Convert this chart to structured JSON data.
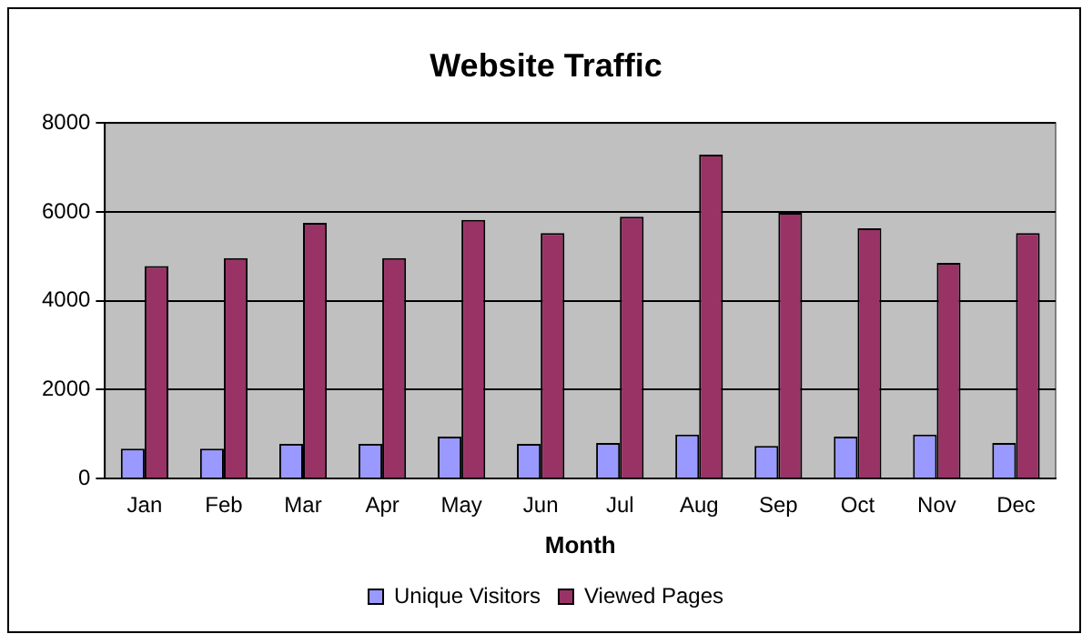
{
  "chart_data": {
    "type": "bar",
    "title": "Website Traffic",
    "xlabel": "Month",
    "categories": [
      "Jan",
      "Feb",
      "Mar",
      "Apr",
      "May",
      "Jun",
      "Jul",
      "Aug",
      "Sep",
      "Oct",
      "Nov",
      "Dec"
    ],
    "series": [
      {
        "name": "Unique Visitors",
        "color": "#9999ff",
        "values": [
          670,
          670,
          780,
          780,
          940,
          780,
          800,
          990,
          730,
          940,
          990,
          800
        ]
      },
      {
        "name": "Viewed Pages",
        "color": "#993366",
        "values": [
          4780,
          4960,
          5750,
          4960,
          5820,
          5520,
          5890,
          7290,
          5980,
          5630,
          4850,
          5520
        ]
      }
    ],
    "ylim": [
      0,
      8000
    ],
    "yticks": [
      0,
      2000,
      4000,
      6000,
      8000
    ],
    "grid": "y",
    "legend": "bottom"
  }
}
